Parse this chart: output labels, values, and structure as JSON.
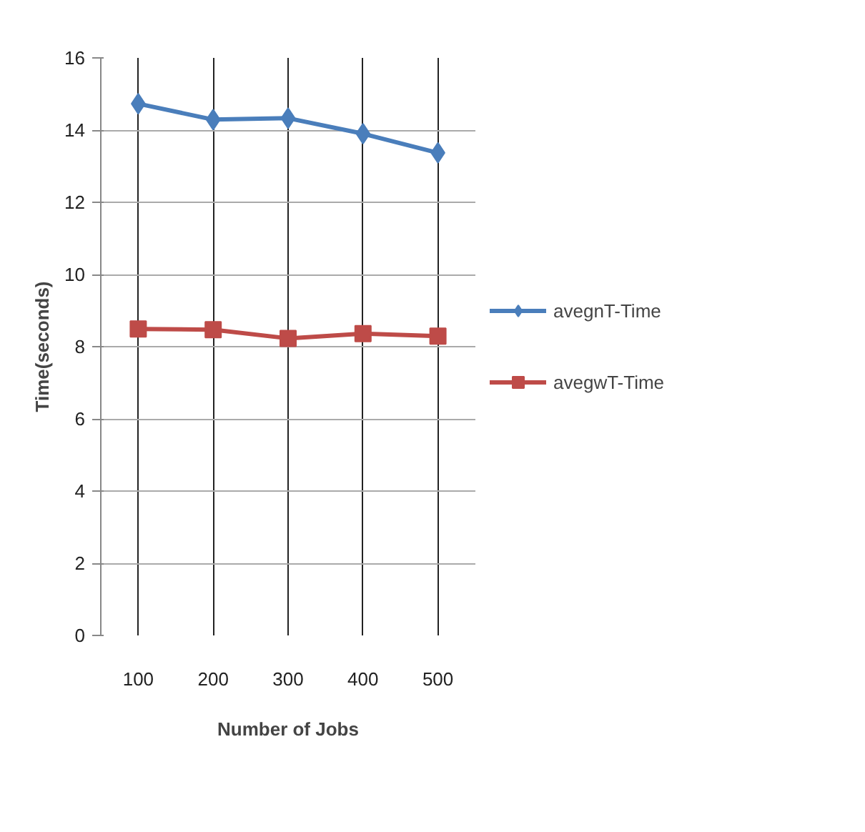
{
  "chart_data": {
    "type": "line",
    "xlabel": "Number of Jobs",
    "ylabel": "Time(seconds)",
    "categories": [
      "100",
      "200",
      "300",
      "400",
      "500"
    ],
    "series": [
      {
        "name": "avegnT-Time",
        "color": "#4a7ebb",
        "marker": "diamond",
        "values": [
          14.73,
          14.29,
          14.33,
          13.9,
          13.37
        ]
      },
      {
        "name": "avegwT-Time",
        "color": "#be4b48",
        "marker": "square",
        "values": [
          8.49,
          8.47,
          8.23,
          8.36,
          8.29
        ]
      }
    ],
    "ylim": [
      0,
      16
    ],
    "yticks": [
      0,
      2,
      4,
      6,
      8,
      10,
      12,
      14,
      16
    ],
    "grid": true,
    "legend": "right",
    "line_style": "solid"
  }
}
